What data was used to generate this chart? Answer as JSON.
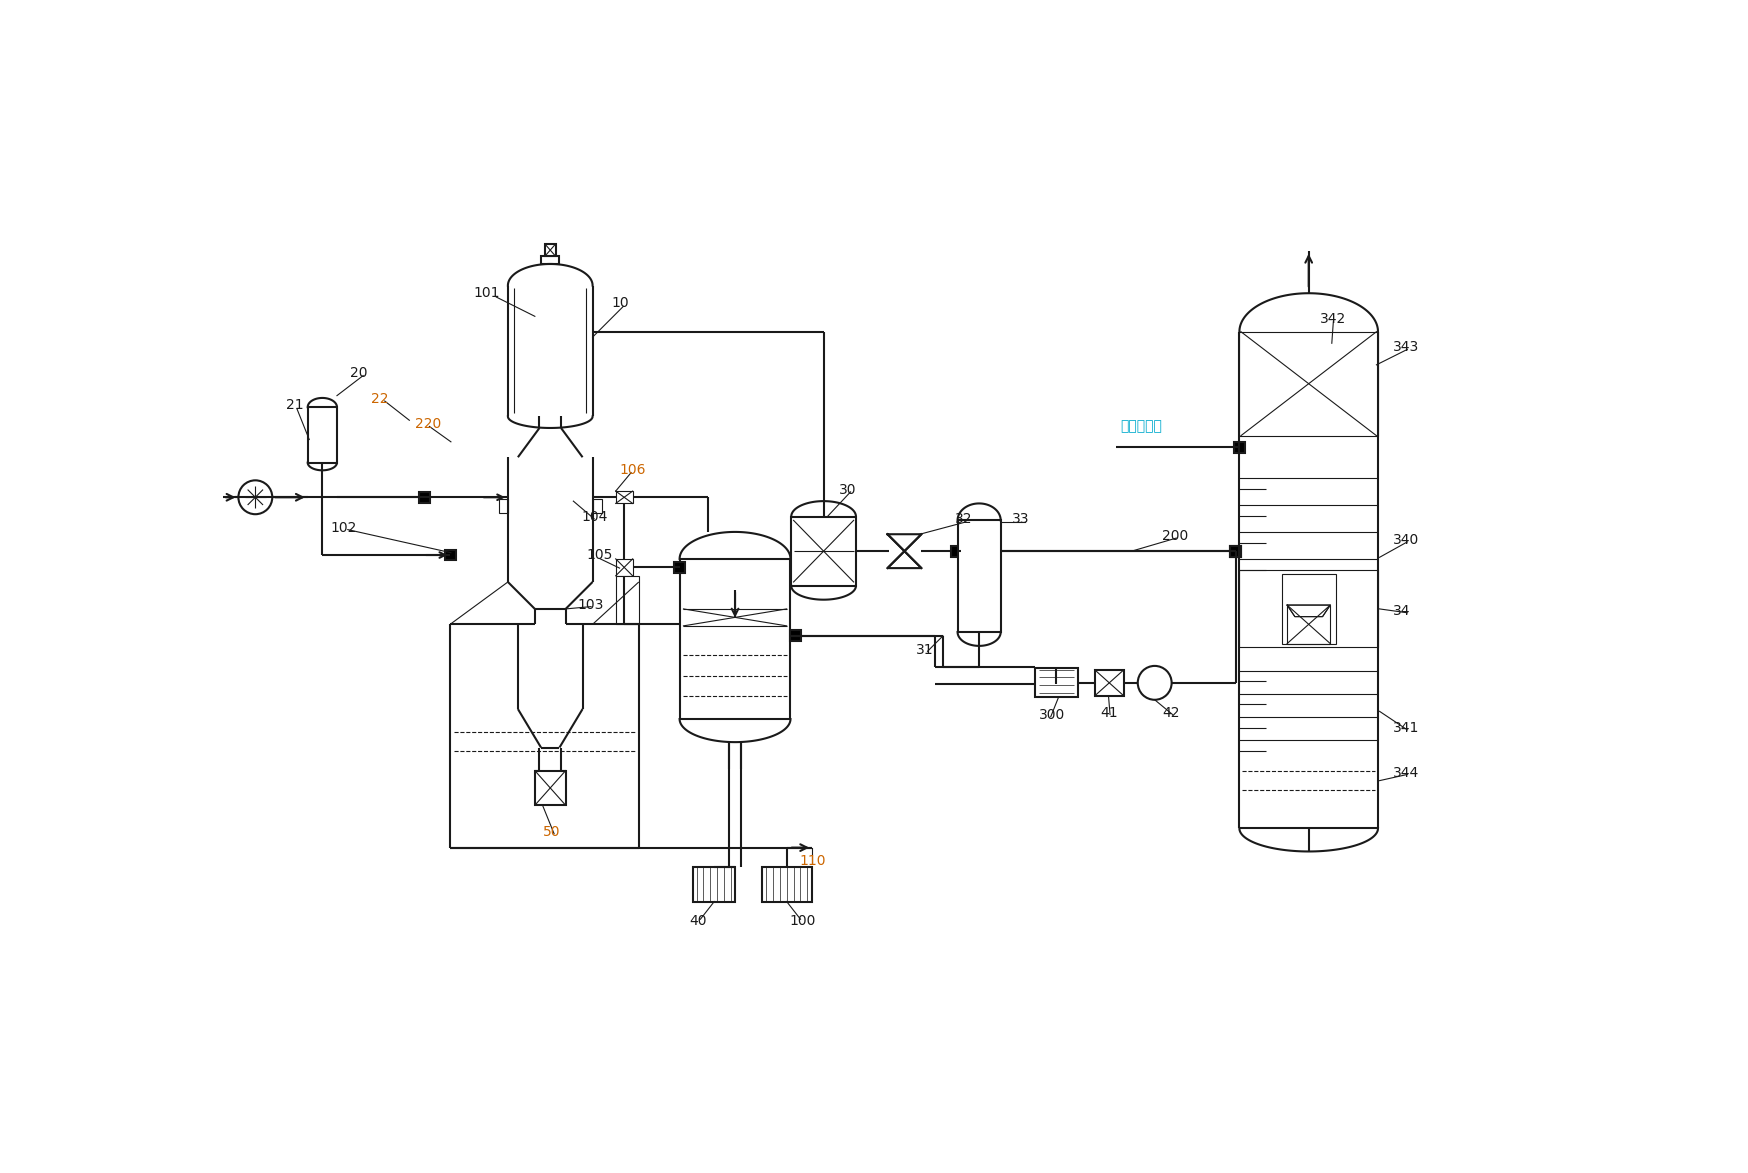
{
  "bg": "#ffffff",
  "lc": "#1a1a1a",
  "lw": 1.5,
  "lw_thin": 0.8,
  "orange": "#cc6600",
  "cyan": "#00aacc",
  "figw": 17.49,
  "figh": 11.73,
  "dpi": 100
}
